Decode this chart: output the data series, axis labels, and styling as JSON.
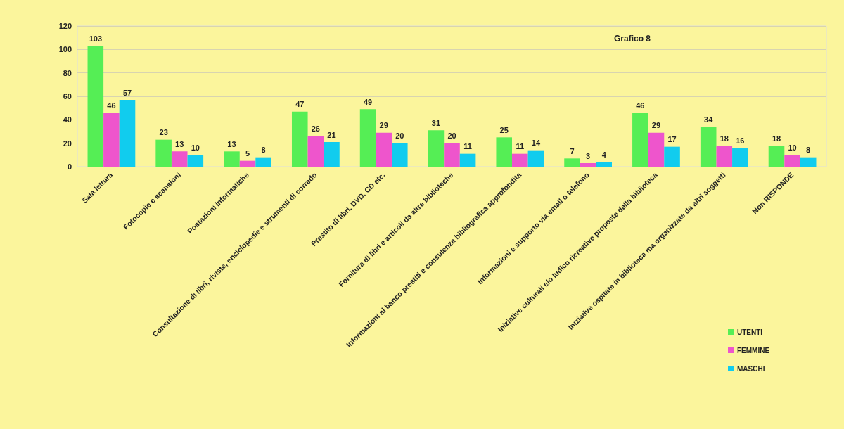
{
  "chart_data": {
    "type": "bar",
    "title": "Grafico 8",
    "categories": [
      "Sala lettura",
      "Fotocopie e scansioni",
      "Postazioni informatiche",
      "Consultazione di libri, riviste, enciclopedie e strumenti di corredo",
      "Prestito di libri, DVD, CD etc.",
      "Fornitura di libri e articoli da altre biblioteche",
      "Informazioni al banco prestiti e consulenza bibliografica approfondita",
      "Informazioni e supporto via email o telefono",
      "Iniziative culturali e/o ludico ricreative proposte dalla biblioteca",
      "Iniziative ospitate in biblioteca ma organizzate da altri soggetti",
      "Non RISPONDE"
    ],
    "series": [
      {
        "name": "UTENTI",
        "color": "#55ee55",
        "values": [
          103,
          23,
          13,
          47,
          49,
          31,
          25,
          7,
          46,
          34,
          18
        ]
      },
      {
        "name": "FEMMINE",
        "color": "#ee55cc",
        "values": [
          46,
          13,
          5,
          26,
          29,
          20,
          11,
          3,
          29,
          18,
          10
        ]
      },
      {
        "name": "MASCHI",
        "color": "#11ccee",
        "values": [
          57,
          10,
          8,
          21,
          20,
          11,
          14,
          4,
          17,
          16,
          8
        ]
      }
    ],
    "ylim": [
      0,
      120
    ],
    "yticks": [
      0,
      20,
      40,
      60,
      80,
      100,
      120
    ],
    "grid": "y",
    "legend": "bottom right",
    "data_labels": true
  }
}
